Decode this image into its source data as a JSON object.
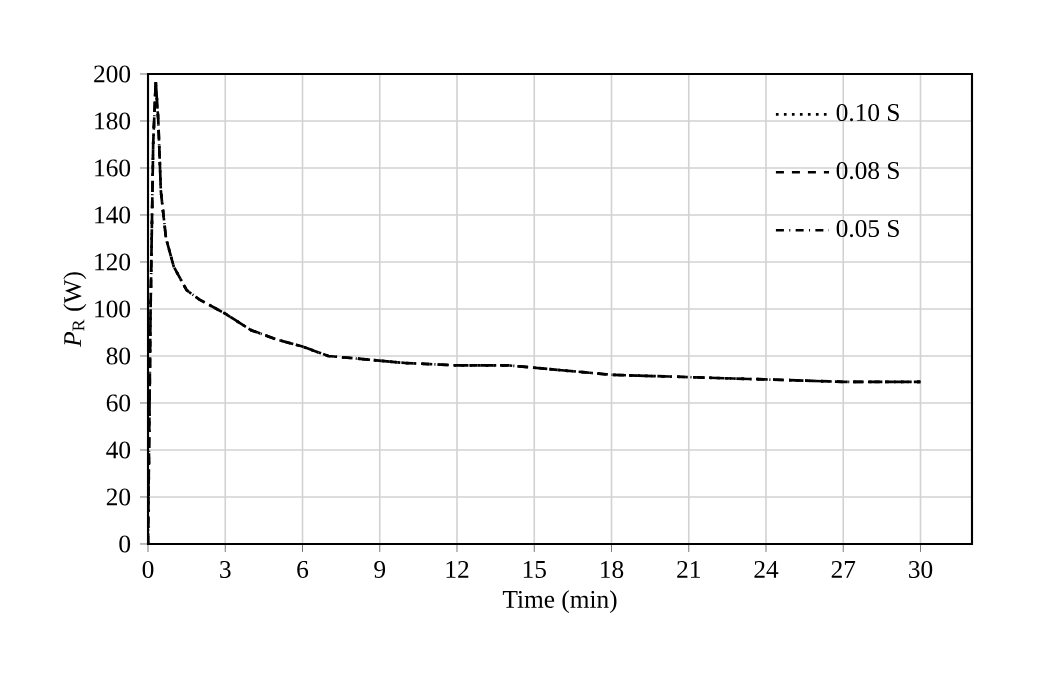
{
  "chart_data": {
    "type": "line",
    "xlabel": "Time (min)",
    "ylabel": "*P*$_{R}$  (W)",
    "x": [
      0,
      0.1,
      0.2,
      0.3,
      0.4,
      0.5,
      0.7,
      1,
      1.5,
      2,
      3,
      4,
      5,
      6,
      7,
      8,
      9,
      10,
      12,
      14,
      15,
      17,
      18,
      21,
      24,
      27,
      30
    ],
    "series": [
      {
        "name": "0.10 S",
        "color": "#000000",
        "line_style": "dotted",
        "values": [
          0,
          100,
          170,
          197,
          180,
          150,
          130,
          118,
          108,
          104,
          98,
          91,
          87,
          84,
          80,
          79,
          78,
          77,
          76,
          76,
          75,
          73,
          72,
          71,
          70,
          69,
          69
        ]
      },
      {
        "name": "0.08 S",
        "color": "#000000",
        "line_style": "dashed",
        "values": [
          0,
          100,
          170,
          197,
          180,
          150,
          130,
          118,
          108,
          104,
          98,
          91,
          87,
          84,
          80,
          79,
          78,
          77,
          76,
          76,
          75,
          73,
          72,
          71,
          70,
          69,
          69
        ]
      },
      {
        "name": "0.05 S",
        "color": "#000000",
        "line_style": "dashdot",
        "values": [
          0,
          100,
          170,
          197,
          180,
          150,
          130,
          118,
          108,
          104,
          98,
          91,
          87,
          84,
          80,
          79,
          78,
          77,
          76,
          76,
          75,
          73,
          72,
          71,
          70,
          69,
          69
        ]
      }
    ],
    "xlim": [
      0,
      32
    ],
    "xticks": [
      0,
      3,
      6,
      9,
      12,
      15,
      18,
      21,
      24,
      27,
      30
    ],
    "ylim": [
      0,
      200
    ],
    "yticks": [
      0,
      20,
      40,
      60,
      80,
      100,
      120,
      140,
      160,
      180,
      200
    ],
    "grid": true,
    "legend": "top right"
  }
}
